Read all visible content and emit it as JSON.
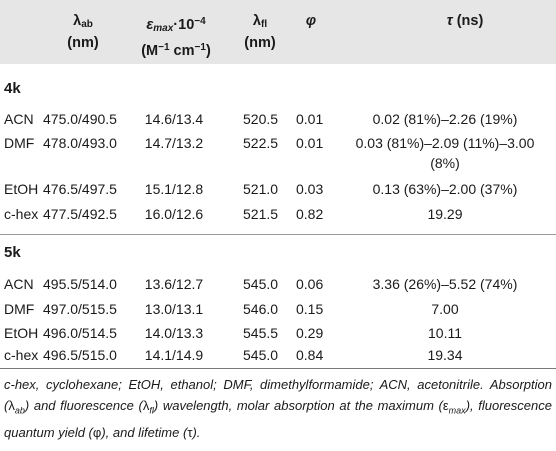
{
  "header": {
    "lab_label": "λ",
    "lab_sub": "ab",
    "lab_unit": "(nm)",
    "eps_label": "ε",
    "eps_sub": "max",
    "eps_mult": "·10",
    "eps_exp": "−4",
    "eps_unit_a": "(M",
    "eps_unit_exp1": "−1",
    "eps_unit_b": " cm",
    "eps_unit_exp2": "−1",
    "eps_unit_c": ")",
    "lfl_label": "λ",
    "lfl_sub": "fl",
    "lfl_unit": "(nm)",
    "phi_label": "φ",
    "tau_label": "τ",
    "tau_unit": "(ns)"
  },
  "sections": [
    {
      "name": "4k",
      "rows": [
        {
          "solvent": "ACN",
          "lab": "475.0/490.5",
          "eps": "14.6/13.4",
          "lfl": "520.5",
          "phi": "0.01",
          "tau": "0.02 (81%)–2.26 (19%)"
        },
        {
          "solvent": "DMF",
          "lab": "478.0/493.0",
          "eps": "14.7/13.2",
          "lfl": "522.5",
          "phi": "0.01",
          "tau": "0.03 (81%)–2.09 (11%)–3.00",
          "tau2": "(8%)"
        },
        {
          "solvent": "EtOH",
          "lab": "476.5/497.5",
          "eps": "15.1/12.8",
          "lfl": "521.0",
          "phi": "0.03",
          "tau": "0.13 (63%)–2.00 (37%)"
        },
        {
          "solvent": "c-hex",
          "lab": "477.5/492.5",
          "eps": "16.0/12.6",
          "lfl": "521.5",
          "phi": "0.82",
          "tau": "19.29"
        }
      ]
    },
    {
      "name": "5k",
      "rows": [
        {
          "solvent": "ACN",
          "lab": "495.5/514.0",
          "eps": "13.6/12.7",
          "lfl": "545.0",
          "phi": "0.06",
          "tau": "3.36 (26%)–5.52 (74%)"
        },
        {
          "solvent": "DMF",
          "lab": "497.0/515.5",
          "eps": "13.0/13.1",
          "lfl": "546.0",
          "phi": "0.15",
          "tau": "7.00"
        },
        {
          "solvent": "EtOH",
          "lab": "496.0/514.5",
          "eps": "14.0/13.3",
          "lfl": "545.5",
          "phi": "0.29",
          "tau": "10.11"
        },
        {
          "solvent": "c-hex",
          "lab": "496.5/515.0",
          "eps": "14.1/14.9",
          "lfl": "545.0",
          "phi": "0.84",
          "tau": "19.34"
        }
      ]
    }
  ],
  "footnote": {
    "t1": "c-hex, cyclohexane; EtOH, ethanol; DMF, dimethylformamide; ACN, acetonitrile. Absorption (",
    "s1": "λ",
    "s1sub": "ab",
    "t2": ") and fluorescence (",
    "s2": "λ",
    "s2sub": "fl",
    "t3": ") wavelength, molar absorption at the maximum (",
    "s3": "ε",
    "s3sub": "max",
    "t4": "), fluorescence quantum yield (",
    "s4": "φ",
    "t5": "), and lifetime (",
    "s5": "τ",
    "t6": ")."
  }
}
